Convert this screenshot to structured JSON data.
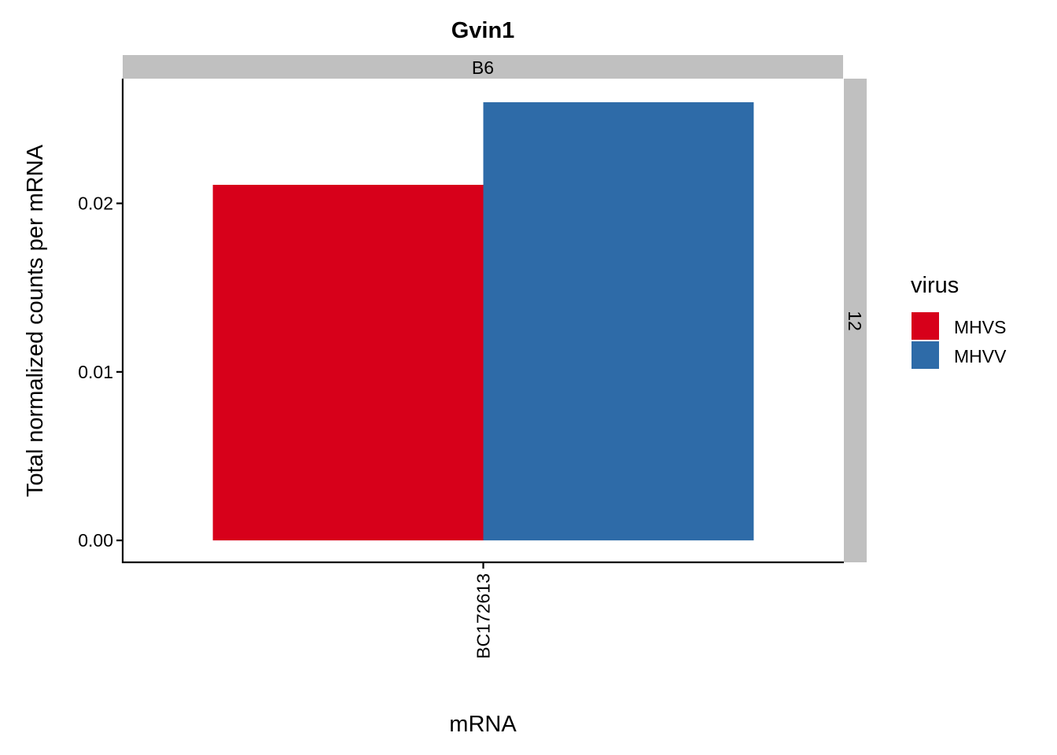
{
  "chart_data": {
    "type": "bar",
    "title": "Gvin1",
    "facet_top": "B6",
    "facet_right": "12",
    "categories": [
      "BC172613"
    ],
    "series": [
      {
        "name": "MHVS",
        "values": [
          0.0211
        ],
        "color": "#D7001A"
      },
      {
        "name": "MHVV",
        "values": [
          0.026
        ],
        "color": "#2E6BA8"
      }
    ],
    "xlabel": "mRNA",
    "ylabel": "Total normalized counts per mRNA",
    "ylim": [
      -0.0013,
      0.0274
    ],
    "yticks": [
      0.0,
      0.01,
      0.02
    ],
    "ytick_labels": [
      "0.00",
      "0.01",
      "0.02"
    ],
    "legend": {
      "title": "virus",
      "position": "right"
    },
    "grid": false
  }
}
